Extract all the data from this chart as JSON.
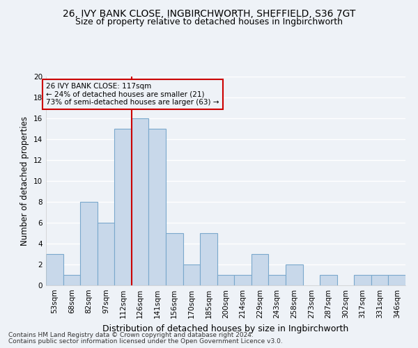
{
  "title": "26, IVY BANK CLOSE, INGBIRCHWORTH, SHEFFIELD, S36 7GT",
  "subtitle": "Size of property relative to detached houses in Ingbirchworth",
  "xlabel": "Distribution of detached houses by size in Ingbirchworth",
  "ylabel": "Number of detached properties",
  "categories": [
    "53sqm",
    "68sqm",
    "82sqm",
    "97sqm",
    "112sqm",
    "126sqm",
    "141sqm",
    "156sqm",
    "170sqm",
    "185sqm",
    "200sqm",
    "214sqm",
    "229sqm",
    "243sqm",
    "258sqm",
    "273sqm",
    "287sqm",
    "302sqm",
    "317sqm",
    "331sqm",
    "346sqm"
  ],
  "values": [
    3,
    1,
    8,
    6,
    15,
    16,
    15,
    5,
    2,
    5,
    1,
    1,
    3,
    1,
    2,
    0,
    1,
    0,
    1,
    1,
    1
  ],
  "bar_color": "#c8d8ea",
  "bar_edgecolor": "#7aa8cc",
  "vline_x_index": 4,
  "vline_color": "#cc0000",
  "annotation_text": "26 IVY BANK CLOSE: 117sqm\n← 24% of detached houses are smaller (21)\n73% of semi-detached houses are larger (63) →",
  "annotation_box_edgecolor": "#cc0000",
  "ylim": [
    0,
    20
  ],
  "yticks": [
    0,
    2,
    4,
    6,
    8,
    10,
    12,
    14,
    16,
    18,
    20
  ],
  "footnote1": "Contains HM Land Registry data © Crown copyright and database right 2024.",
  "footnote2": "Contains public sector information licensed under the Open Government Licence v3.0.",
  "background_color": "#eef2f7",
  "grid_color": "#ffffff",
  "title_fontsize": 10,
  "subtitle_fontsize": 9,
  "xlabel_fontsize": 9,
  "ylabel_fontsize": 8.5,
  "tick_fontsize": 7.5,
  "annot_fontsize": 7.5,
  "footnote_fontsize": 6.5
}
